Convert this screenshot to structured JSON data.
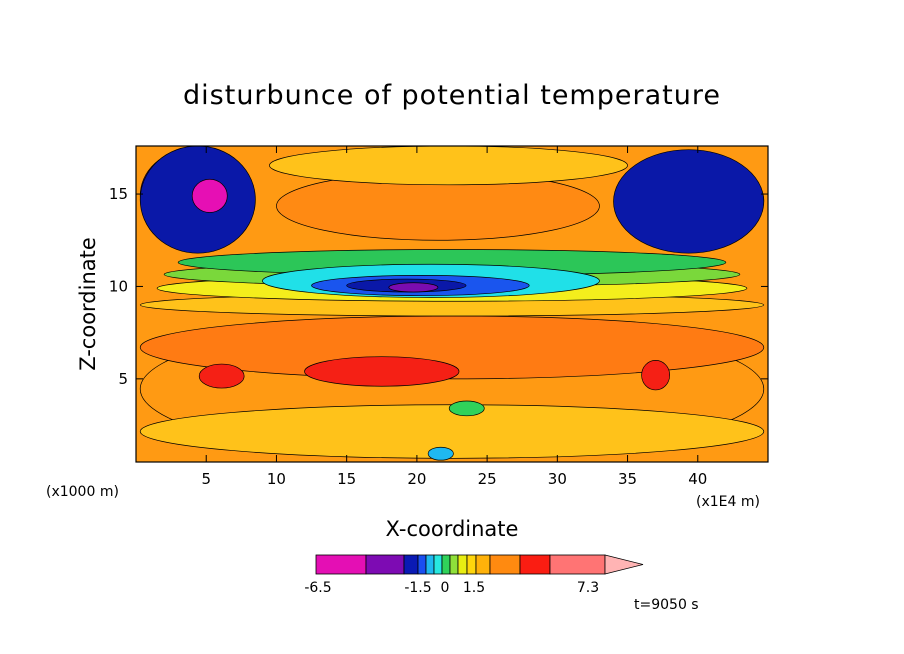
{
  "chart_data": {
    "type": "heatmap",
    "title": "disturbunce of potential temperature",
    "xlabel": "X-coordinate",
    "ylabel": "Z-coordinate",
    "x_unit": "(x1E4 m)",
    "y_unit": "(x1000 m)",
    "xlim": [
      0,
      45
    ],
    "ylim": [
      0.5,
      17.6
    ],
    "x_ticks": [
      5,
      10,
      15,
      20,
      25,
      30,
      35,
      40
    ],
    "y_ticks": [
      5,
      10,
      15
    ],
    "x_tick_labels": [
      "5",
      "10",
      "15",
      "20",
      "25",
      "30",
      "35",
      "40"
    ],
    "y_tick_labels": [
      "5",
      "10",
      "15"
    ],
    "time_label": "t=9050 s",
    "colorbar": {
      "labels": [
        "-6.5",
        "-1.5",
        "0",
        "1.5",
        "7.3"
      ],
      "level_colors": [
        "#e40fb4",
        "#7d0bb3",
        "#0a1ab4",
        "#1a4ff0",
        "#1fb8f0",
        "#27e8e0",
        "#30d25a",
        "#8fe03a",
        "#e8ed12",
        "#ffd60c",
        "#ffb20a",
        "#ff8a10",
        "#fa1d12",
        "#ff7474"
      ]
    },
    "regions": [
      {
        "color": "#ff9a13",
        "x": [
          0.3,
          44.7
        ],
        "z": [
          0.7,
          8.2
        ]
      },
      {
        "color": "#ff7b13",
        "x": [
          0.3,
          44.7
        ],
        "z": [
          5.0,
          8.4
        ]
      },
      {
        "color": "#ffc21a",
        "x": [
          0.3,
          44.7
        ],
        "z": [
          8.4,
          9.6
        ]
      },
      {
        "color": "#f4ee1c",
        "x": [
          1.5,
          43.5
        ],
        "z": [
          9.2,
          10.6
        ]
      },
      {
        "color": "#7ad83b",
        "x": [
          2.0,
          43.0
        ],
        "z": [
          10.0,
          11.3
        ]
      },
      {
        "color": "#2cc658",
        "x": [
          3.0,
          42.0
        ],
        "z": [
          10.6,
          12.0
        ]
      },
      {
        "color": "#20e0e8",
        "x": [
          9.0,
          33.0
        ],
        "z": [
          9.4,
          11.2
        ]
      },
      {
        "color": "#1a55ee",
        "x": [
          12.5,
          28.0
        ],
        "z": [
          9.5,
          10.6
        ]
      },
      {
        "color": "#0a18a8",
        "x": [
          15.0,
          23.5
        ],
        "z": [
          9.7,
          10.4
        ]
      },
      {
        "color": "#7a0cb0",
        "x": [
          18.0,
          21.5
        ],
        "z": [
          9.7,
          10.2
        ]
      },
      {
        "color": "#ff8a13",
        "x": [
          10.0,
          33.0
        ],
        "z": [
          12.5,
          16.2
        ]
      },
      {
        "color": "#ffc21a",
        "x": [
          9.5,
          35.0
        ],
        "z": [
          15.5,
          17.6
        ]
      },
      {
        "color": "#7a0cb0",
        "x": [
          0.3,
          7.5
        ],
        "z": [
          12.4,
          17.4
        ]
      },
      {
        "color": "#0a18a8",
        "x": [
          0.3,
          8.5
        ],
        "z": [
          11.8,
          17.6
        ]
      },
      {
        "color": "#e60fb4",
        "x": [
          4.0,
          6.5
        ],
        "z": [
          14.0,
          15.8
        ]
      },
      {
        "color": "#7a0cb0",
        "x": [
          34.8,
          44.7
        ],
        "z": [
          12.5,
          16.8
        ]
      },
      {
        "color": "#0a18a8",
        "x": [
          34.0,
          44.7
        ],
        "z": [
          11.8,
          17.4
        ]
      },
      {
        "color": "#f52015",
        "x": [
          4.5,
          7.7
        ],
        "z": [
          4.5,
          5.8
        ]
      },
      {
        "color": "#f52015",
        "x": [
          12.0,
          23.0
        ],
        "z": [
          4.6,
          6.2
        ]
      },
      {
        "color": "#f52015",
        "x": [
          36.0,
          38.0
        ],
        "z": [
          4.4,
          6.0
        ]
      },
      {
        "color": "#ffc21a",
        "x": [
          0.3,
          44.7
        ],
        "z": [
          0.7,
          3.6
        ]
      },
      {
        "color": "#30d25a",
        "x": [
          22.3,
          24.8
        ],
        "z": [
          3.0,
          3.8
        ]
      },
      {
        "color": "#1fb8f0",
        "x": [
          20.8,
          22.6
        ],
        "z": [
          0.6,
          1.3
        ]
      }
    ]
  }
}
